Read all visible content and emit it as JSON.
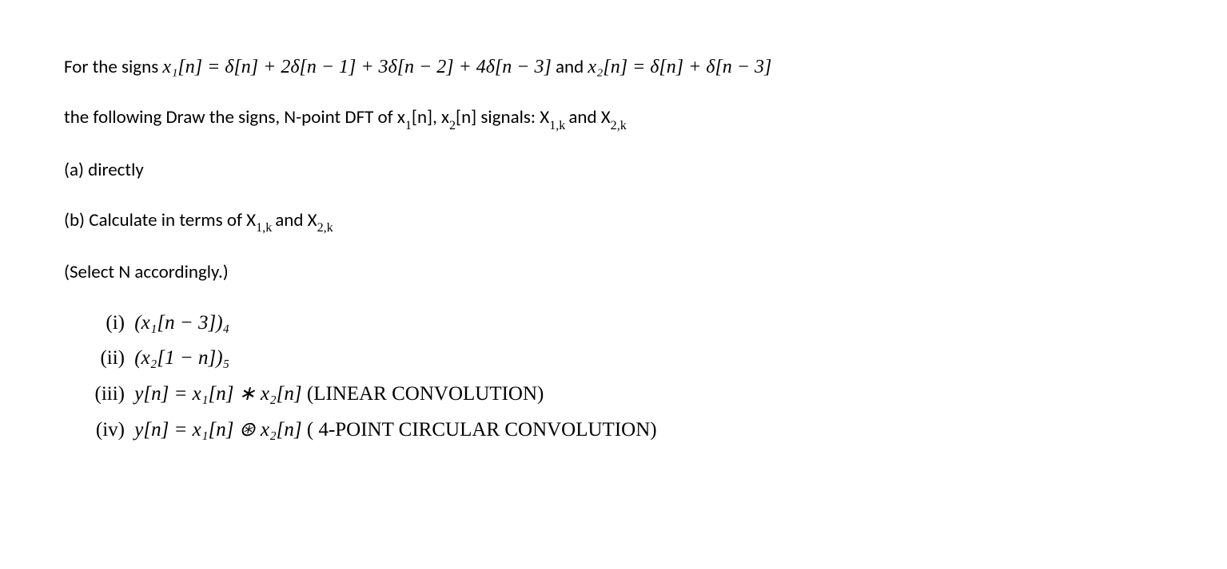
{
  "p1": {
    "prefix": "For the signs  ",
    "eq1": "x₁[n] = δ[n] + 2δ[n − 1] + 3δ[n − 2] + 4δ[n − 3]",
    "mid": "  and  ",
    "eq2": "x₂[n] = δ[n] + δ[n − 3]"
  },
  "p2": {
    "a": "the following Draw the signs, N-point DFT of x",
    "s1": "1",
    "b": "[n], x",
    "s2": "2",
    "c": "[n] signals: X",
    "s3": "1,k ",
    "d": "and X",
    "s4": "2,k"
  },
  "p3": "(a) directly",
  "p4": {
    "a": "(b) Calculate in terms of X",
    "s1": "1,k ",
    "b": "and X",
    "s2": "2,k"
  },
  "p5": "(Select N accordingly.)",
  "items": {
    "i": {
      "label": "(i)",
      "text": "(x₁[n − 3])₄"
    },
    "ii": {
      "label": "(ii)",
      "text": "(x₂[1 − n])₅"
    },
    "iii": {
      "label": "(iii)",
      "a": "y[n] = x₁[n] ∗ x₂[n] ",
      "b": "(LINEAR CONVOLUTION)"
    },
    "iv": {
      "label": "(iv)",
      "a": "y[n] = x₁[n] ⊛ x₂[n] ",
      "b": "( 4-POINT CIRCULAR CONVOLUTION)"
    }
  }
}
